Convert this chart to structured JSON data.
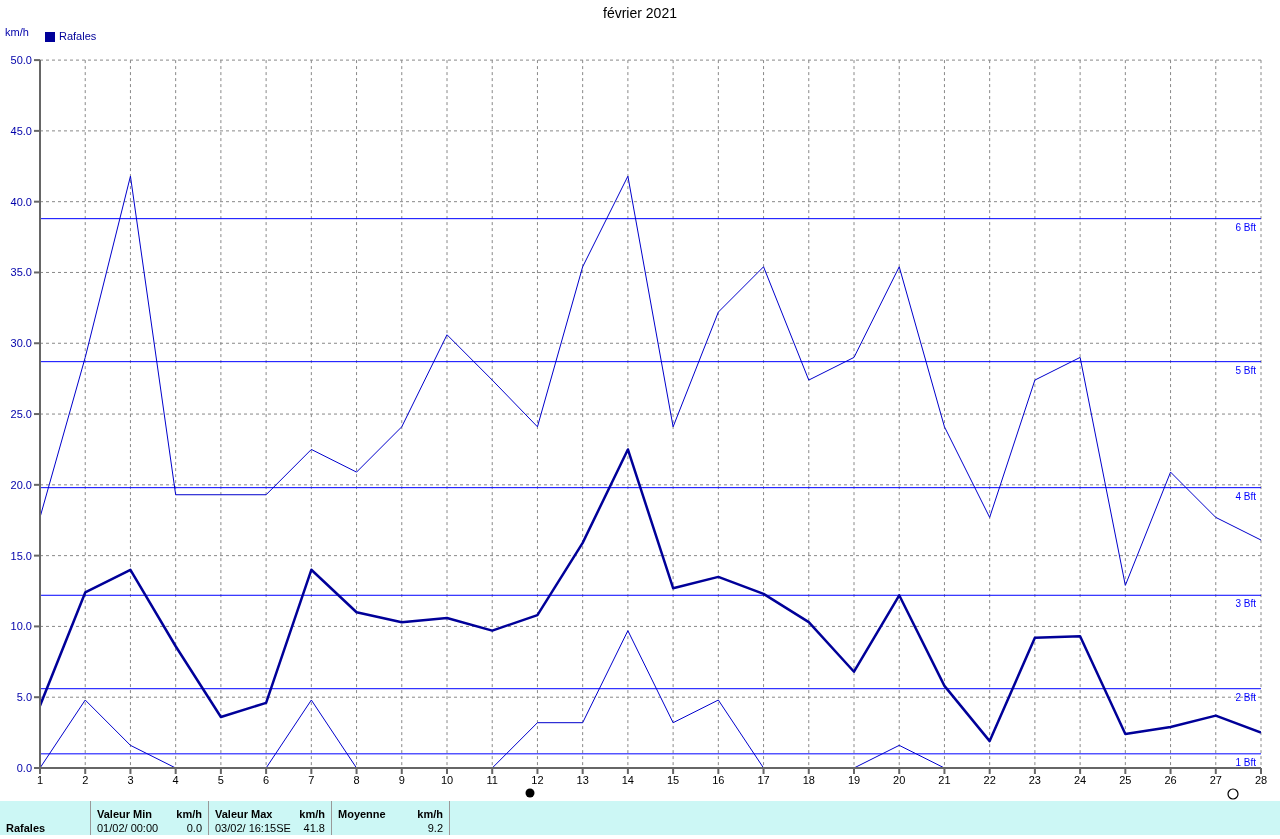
{
  "chart_data": {
    "type": "line",
    "title": "février 2021",
    "ylabel": "km/h",
    "x": [
      1,
      2,
      3,
      4,
      5,
      6,
      7,
      8,
      9,
      10,
      11,
      12,
      13,
      14,
      15,
      16,
      17,
      18,
      19,
      20,
      21,
      22,
      23,
      24,
      25,
      26,
      27,
      28
    ],
    "series": [
      {
        "color": "#0000cc",
        "values": [
          17.7,
          29.0,
          41.8,
          19.3,
          19.3,
          19.3,
          22.5,
          20.9,
          24.1,
          30.6,
          27.4,
          24.1,
          35.4,
          41.8,
          24.1,
          32.2,
          35.4,
          27.4,
          29.0,
          35.4,
          24.1,
          17.7,
          27.4,
          29.0,
          12.9,
          20.9,
          17.7,
          16.1
        ]
      },
      {
        "name": "Rafales",
        "color": "#000099",
        "values": [
          4.4,
          12.4,
          14.0,
          8.6,
          3.6,
          4.6,
          14.0,
          11.0,
          10.3,
          10.6,
          9.7,
          10.8,
          15.9,
          22.5,
          12.7,
          13.5,
          12.3,
          10.3,
          6.8,
          12.2,
          5.8,
          1.9,
          9.2,
          9.3,
          2.4,
          2.9,
          3.7,
          2.5
        ]
      },
      {
        "color": "#0000cc",
        "values": [
          0,
          4.8,
          1.6,
          0,
          0,
          0,
          4.8,
          0,
          0,
          0,
          0,
          3.2,
          3.2,
          9.7,
          3.2,
          4.8,
          0,
          0,
          0,
          1.6,
          0,
          0,
          null,
          null,
          null,
          null,
          null,
          null
        ]
      }
    ],
    "xlim": [
      1,
      28
    ],
    "xticks": [
      1,
      2,
      3,
      4,
      5,
      6,
      7,
      8,
      9,
      10,
      11,
      12,
      13,
      14,
      15,
      16,
      17,
      18,
      19,
      20,
      21,
      22,
      23,
      24,
      25,
      26,
      27,
      28
    ],
    "ylim": [
      0,
      50
    ],
    "yticks": [
      {
        "value": 0,
        "label": "0.0"
      },
      {
        "value": 5,
        "label": "5.0"
      },
      {
        "value": 10,
        "label": "10.0"
      },
      {
        "value": 15,
        "label": "15.0"
      },
      {
        "value": 20,
        "label": "20.0"
      },
      {
        "value": 25,
        "label": "25.0"
      },
      {
        "value": 30,
        "label": "30.0"
      },
      {
        "value": 35,
        "label": "35.0"
      },
      {
        "value": 40,
        "label": "40.0"
      },
      {
        "value": 45,
        "label": "45.0"
      },
      {
        "value": 50,
        "label": "50.0"
      }
    ],
    "ref_lines": [
      {
        "axis": "y",
        "value": 1.0,
        "label": "1 Bft",
        "color": "#0000ff"
      },
      {
        "axis": "y",
        "value": 5.6,
        "label": "2 Bft",
        "color": "#0000ff"
      },
      {
        "axis": "y",
        "value": 12.2,
        "label": "3 Bft",
        "color": "#0000ff"
      },
      {
        "axis": "y",
        "value": 19.8,
        "label": "4 Bft",
        "color": "#0000ff"
      },
      {
        "axis": "y",
        "value": 28.7,
        "label": "5 Bft",
        "color": "#0000ff"
      },
      {
        "axis": "y",
        "value": 38.8,
        "label": "6 Bft",
        "color": "#0000ff"
      }
    ],
    "grid": true,
    "legend": "top left",
    "marker": "none",
    "line_style": "solid",
    "annotations": [
      "Rafales",
      "Valeur Min",
      "km/h",
      "01/02/ 00:00",
      "0.0",
      "Valeur Max",
      "km/h",
      "03/02/ 16:15SE",
      "41.8",
      "Moyenne",
      "km/h",
      "9.2"
    ]
  }
}
